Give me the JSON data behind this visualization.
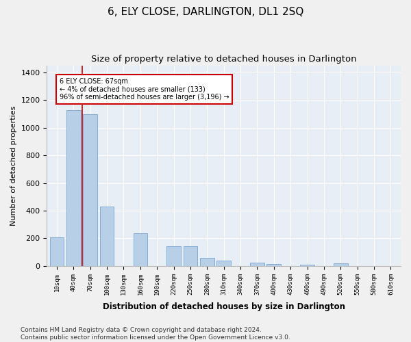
{
  "title": "6, ELY CLOSE, DARLINGTON, DL1 2SQ",
  "subtitle": "Size of property relative to detached houses in Darlington",
  "xlabel": "Distribution of detached houses by size in Darlington",
  "ylabel": "Number of detached properties",
  "bar_color": "#b8cfe8",
  "bar_edge_color": "#6699cc",
  "background_color": "#e8eef5",
  "grid_color": "#ffffff",
  "annotation_line_color": "#cc0000",
  "annotation_box_color": "#cc0000",
  "annotation_text": "6 ELY CLOSE: 67sqm\n← 4% of detached houses are smaller (133)\n96% of semi-detached houses are larger (3,196) →",
  "categories": [
    "10sqm",
    "40sqm",
    "70sqm",
    "100sqm",
    "130sqm",
    "160sqm",
    "190sqm",
    "220sqm",
    "250sqm",
    "280sqm",
    "310sqm",
    "340sqm",
    "370sqm",
    "400sqm",
    "430sqm",
    "460sqm",
    "490sqm",
    "520sqm",
    "550sqm",
    "580sqm",
    "610sqm"
  ],
  "values": [
    205,
    1125,
    1095,
    430,
    0,
    235,
    0,
    145,
    145,
    57,
    38,
    0,
    25,
    15,
    0,
    10,
    0,
    20,
    0,
    0,
    0
  ],
  "ylim": [
    0,
    1450
  ],
  "yticks": [
    0,
    200,
    400,
    600,
    800,
    1000,
    1200,
    1400
  ],
  "footer_text": "Contains HM Land Registry data © Crown copyright and database right 2024.\nContains public sector information licensed under the Open Government Licence v3.0.",
  "title_fontsize": 11,
  "subtitle_fontsize": 9.5,
  "footer_fontsize": 6.5,
  "red_line_x": 1.5
}
